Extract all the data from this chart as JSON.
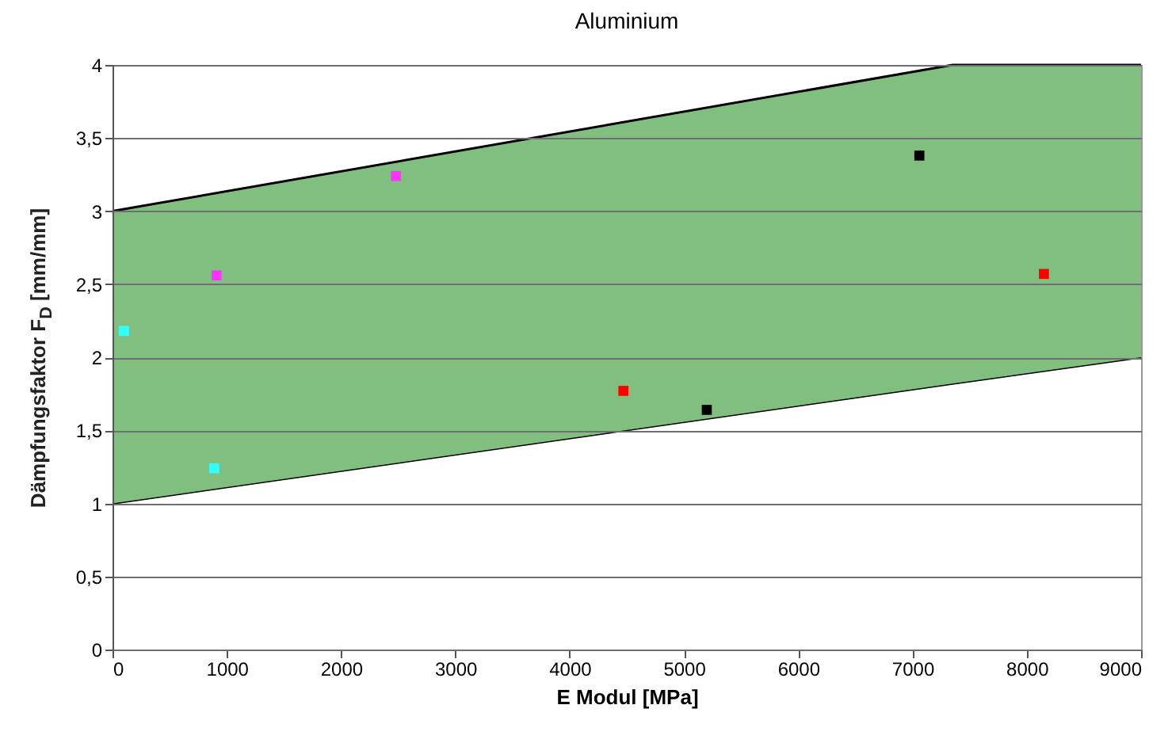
{
  "chart_data": {
    "type": "scatter",
    "title": "Aluminium",
    "xlabel": "E Modul [MPa]",
    "ylabel": "Dämpfungsfaktor F$_{D}$ [mm/mm]",
    "xlim": [
      0,
      9000
    ],
    "xticks": [
      0,
      1000,
      2000,
      3000,
      4000,
      5000,
      6000,
      7000,
      8000,
      9000
    ],
    "ylim": [
      0,
      4
    ],
    "yticks": [
      0,
      {
        "value": 0.5,
        "label": "0,5"
      },
      1,
      {
        "value": 1.5,
        "label": "1,5"
      },
      2,
      {
        "value": 2.5,
        "label": "2,5"
      },
      3,
      {
        "value": 3.5,
        "label": "3,5"
      },
      4
    ],
    "grid": "y",
    "marker": "square",
    "stacked": true,
    "series": [
      {
        "type": "area",
        "color": "#ffffff",
        "marker": "none",
        "x": [
          0,
          7350,
          9000
        ],
        "values": [
          1,
          1.82,
          2
        ]
      },
      {
        "type": "area",
        "color": "#80bf80",
        "marker": "none",
        "x": [
          0,
          7350,
          9000
        ],
        "values": [
          2,
          2.18,
          2
        ]
      },
      {
        "color": "#33ffff",
        "x": [
          100,
          890
        ],
        "values": [
          2.18,
          1.24
        ]
      },
      {
        "color": "#ff33ff",
        "x": [
          910,
          2480
        ],
        "values": [
          2.56,
          3.24
        ]
      },
      {
        "color": "#ff0000",
        "x": [
          4470,
          8150
        ],
        "values": [
          1.77,
          2.57
        ]
      },
      {
        "color": "#000000",
        "x": [
          5200,
          7060
        ],
        "values": [
          1.64,
          3.38
        ]
      }
    ]
  }
}
